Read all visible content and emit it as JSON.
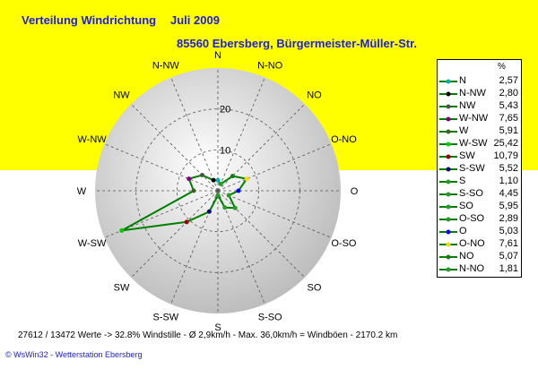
{
  "header": {
    "title": "Verteilung Windrichtung",
    "period": "Juli 2009",
    "location": "85560 Ebersberg, Bürgermeister-Müller-Str."
  },
  "footer": {
    "stats": "27612 / 13472 Werte   -> 32.8% Windstille   -   Ø 2,9km/h   -  Max. 36,0km/h = Windböen   -   2170.2 km",
    "credit": "© WsWin32  -  Wetterstation Ebersberg"
  },
  "colors": {
    "background_top": "#ffff00",
    "title": "#2020d8",
    "series_line": "#008000",
    "disc": "#d2d2d2"
  },
  "legend": {
    "unit": "%"
  },
  "chart_data": {
    "type": "radar",
    "title": "Verteilung Windrichtung   Juli 2009",
    "subtitle": "85560 Ebersberg, Bürgermeister-Müller-Str.",
    "unit": "%",
    "rmax": 30,
    "ring_ticks": [
      10,
      20
    ],
    "categories": [
      "N",
      "N-NW",
      "NW",
      "W-NW",
      "W",
      "W-SW",
      "SW",
      "S-SW",
      "S",
      "S-SO",
      "SO",
      "O-SO",
      "O",
      "O-NO",
      "NO",
      "N-NO"
    ],
    "series": [
      {
        "name": "",
        "values": [
          2.57,
          2.8,
          5.43,
          7.65,
          5.91,
          25.42,
          10.79,
          5.52,
          1.1,
          4.45,
          5.95,
          2.89,
          5.03,
          7.61,
          5.07,
          1.81
        ]
      }
    ],
    "point_colors": [
      "#00b0b0",
      "#000000",
      "#505050",
      "#800080",
      "#406020",
      "#00cc00",
      "#a00000",
      "#000080",
      "#2a9a2a",
      "#2a9a2a",
      "#2a9a2a",
      "#2a9a2a",
      "#0000ff",
      "#ffd700",
      "#1a7a1a",
      "#2a9a2a"
    ],
    "compass_labels": [
      "N",
      "N-NO",
      "NO",
      "O-NO",
      "O",
      "O-SO",
      "SO",
      "S-SO",
      "S",
      "S-SW",
      "SW",
      "W-SW",
      "W",
      "W-NW",
      "NW",
      "N-NW"
    ]
  }
}
